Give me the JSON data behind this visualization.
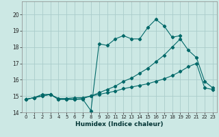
{
  "background_color": "#cce8e4",
  "grid_color": "#aaccca",
  "line_color": "#006868",
  "xlabel": "Humidex (Indice chaleur)",
  "xlim": [
    -0.5,
    23.5
  ],
  "ylim": [
    14,
    20.8
  ],
  "yticks": [
    14,
    15,
    16,
    17,
    18,
    19,
    20
  ],
  "xticks": [
    0,
    1,
    2,
    3,
    4,
    5,
    6,
    7,
    8,
    9,
    10,
    11,
    12,
    13,
    14,
    15,
    16,
    17,
    18,
    19,
    20,
    21,
    22,
    23
  ],
  "line1_x": [
    0,
    1,
    2,
    3,
    4,
    5,
    6,
    7,
    8,
    9,
    10,
    11,
    12,
    13,
    14,
    15,
    16,
    17,
    18,
    19
  ],
  "line1_y": [
    14.8,
    14.9,
    15.1,
    15.1,
    14.8,
    14.8,
    14.8,
    14.8,
    14.1,
    18.2,
    18.1,
    18.5,
    18.7,
    18.5,
    18.5,
    19.2,
    19.7,
    19.3,
    18.6,
    18.7
  ],
  "line2_x": [
    0,
    1,
    2,
    3,
    4,
    5,
    6,
    7,
    8,
    9,
    10,
    11,
    12,
    13,
    14,
    15,
    16,
    17,
    18,
    19,
    20,
    21,
    22,
    23
  ],
  "line2_y": [
    14.8,
    14.9,
    15.0,
    15.1,
    14.8,
    14.8,
    14.8,
    14.85,
    15.0,
    15.2,
    15.4,
    15.6,
    15.9,
    16.1,
    16.4,
    16.7,
    17.1,
    17.5,
    18.0,
    18.5,
    17.8,
    17.35,
    15.9,
    15.5
  ],
  "line3_x": [
    0,
    1,
    2,
    3,
    4,
    5,
    6,
    7,
    8,
    9,
    10,
    11,
    12,
    13,
    14,
    15,
    16,
    17,
    18,
    19,
    20,
    21,
    22,
    23
  ],
  "line3_y": [
    14.8,
    14.9,
    15.0,
    15.1,
    14.85,
    14.85,
    14.9,
    14.9,
    15.0,
    15.1,
    15.2,
    15.3,
    15.45,
    15.55,
    15.65,
    15.75,
    15.9,
    16.05,
    16.25,
    16.5,
    16.8,
    17.0,
    15.5,
    15.4
  ]
}
